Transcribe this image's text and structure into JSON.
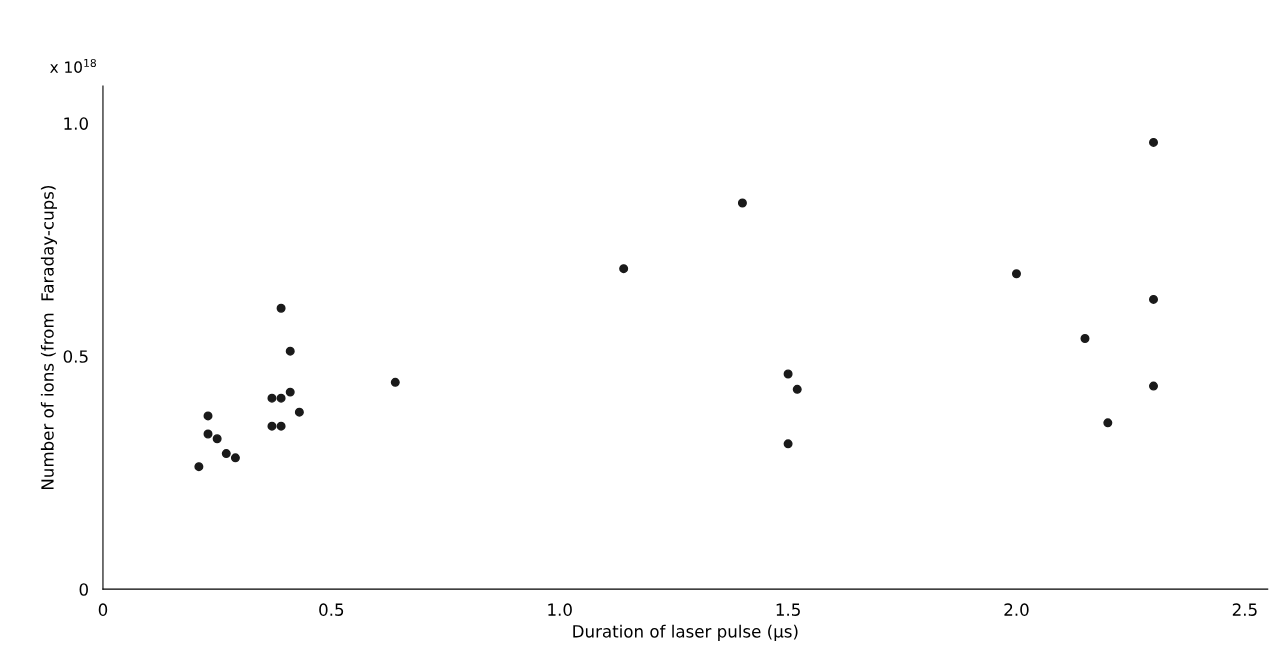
{
  "chart_data": {
    "type": "scatter",
    "xlabel": "Duration of laser pulse (µs)",
    "ylabel": "Number of ions (from  Faraday-cups)",
    "annotations": [
      "x 10$^{18}$"
    ],
    "x": [
      0.21,
      0.23,
      0.23,
      0.25,
      0.27,
      0.29,
      0.37,
      0.37,
      0.39,
      0.39,
      0.39,
      0.41,
      0.41,
      0.43,
      0.64,
      1.14,
      1.4,
      1.5,
      1.52,
      1.5,
      2.0,
      2.15,
      2.2,
      2.3,
      2.3,
      2.3
    ],
    "values": [
      0.263,
      0.372,
      0.333,
      0.323,
      0.291,
      0.282,
      0.41,
      0.35,
      0.603,
      0.41,
      0.35,
      0.511,
      0.423,
      0.38,
      0.444,
      0.688,
      0.829,
      0.462,
      0.429,
      0.312,
      0.677,
      0.538,
      0.357,
      0.959,
      0.622,
      0.436
    ],
    "color": "#1a1a1a",
    "marker": "circle",
    "xlim": [
      0,
      2.55
    ],
    "ylim": [
      0,
      1.08
    ],
    "xticks": [
      0,
      {
        "value": 0.5,
        "label": "0.5"
      },
      {
        "value": 1.0,
        "label": "1.0"
      },
      {
        "value": 1.5,
        "label": "1.5"
      },
      {
        "value": 2.0,
        "label": "2.0"
      },
      {
        "value": 2.5,
        "label": "2.5"
      }
    ],
    "yticks": [
      0,
      {
        "value": 0.5,
        "label": "0.5"
      },
      {
        "value": 1.0,
        "label": "1.0"
      }
    ],
    "grid": false,
    "legend": false
  }
}
